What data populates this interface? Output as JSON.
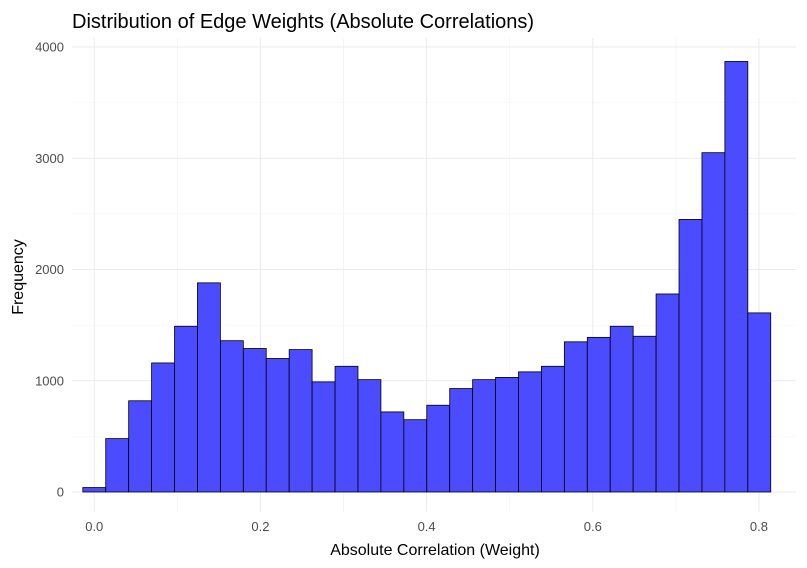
{
  "chart_data": {
    "type": "bar",
    "title": "Distribution of Edge Weights (Absolute Correlations)",
    "xlabel": "Absolute Correlation (Weight)",
    "ylabel": "Frequency",
    "xlim": [
      -0.0268,
      0.8446
    ],
    "ylim": [
      0,
      4000
    ],
    "xticks": [
      0.0,
      0.2,
      0.4,
      0.6,
      0.8
    ],
    "xtick_labels": [
      "0.0",
      "0.2",
      "0.4",
      "0.6",
      "0.8"
    ],
    "yticks": [
      0,
      1000,
      2000,
      3000,
      4000
    ],
    "ytick_labels": [
      "0",
      "1000",
      "2000",
      "3000",
      "4000"
    ],
    "grid": true,
    "bar_color": "#4b4bff",
    "bar_edge_color": "#000000",
    "bin_width": 0.0276,
    "bin_centers": [
      0.0,
      0.0276,
      0.0552,
      0.0828,
      0.1104,
      0.138,
      0.1656,
      0.1932,
      0.2208,
      0.2484,
      0.276,
      0.3036,
      0.3312,
      0.3588,
      0.3864,
      0.414,
      0.4416,
      0.4692,
      0.4968,
      0.5244,
      0.552,
      0.5796,
      0.6072,
      0.6348,
      0.6624,
      0.69,
      0.7176,
      0.7452,
      0.7728,
      0.8004
    ],
    "values": [
      40,
      480,
      820,
      1160,
      1490,
      1880,
      1360,
      1290,
      1200,
      1280,
      990,
      1130,
      1010,
      720,
      650,
      780,
      930,
      1010,
      1030,
      1080,
      1130,
      1350,
      1390,
      1490,
      1400,
      1780,
      2450,
      3050,
      3870,
      1610
    ]
  }
}
